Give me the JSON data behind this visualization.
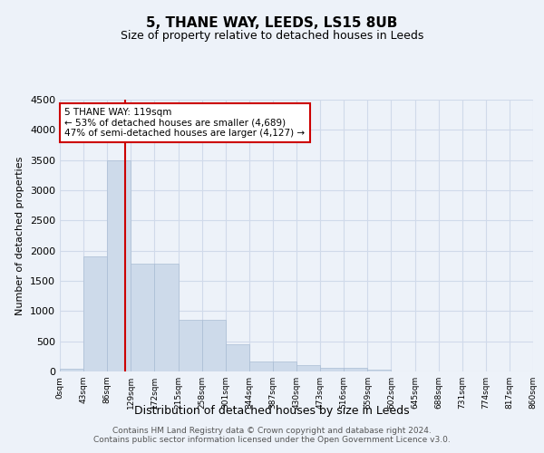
{
  "title": "5, THANE WAY, LEEDS, LS15 8UB",
  "subtitle": "Size of property relative to detached houses in Leeds",
  "xlabel": "Distribution of detached houses by size in Leeds",
  "ylabel": "Number of detached properties",
  "bar_heights": [
    50,
    1900,
    3500,
    1780,
    1780,
    850,
    850,
    450,
    160,
    160,
    100,
    60,
    55,
    30,
    0,
    0,
    0,
    0,
    0,
    0
  ],
  "bin_labels": [
    "0sqm",
    "43sqm",
    "86sqm",
    "129sqm",
    "172sqm",
    "215sqm",
    "258sqm",
    "301sqm",
    "344sqm",
    "387sqm",
    "430sqm",
    "473sqm",
    "516sqm",
    "559sqm",
    "602sqm",
    "645sqm",
    "688sqm",
    "731sqm",
    "774sqm",
    "817sqm",
    "860sqm"
  ],
  "bar_color": "#cddaea",
  "bar_edge_color": "#aabdd4",
  "vline_x": 2.75,
  "vline_color": "#cc0000",
  "annotation_text": "5 THANE WAY: 119sqm\n← 53% of detached houses are smaller (4,689)\n47% of semi-detached houses are larger (4,127) →",
  "annotation_box_color": "#ffffff",
  "annotation_box_edge": "#cc0000",
  "grid_color": "#d0daea",
  "background_color": "#edf2f9",
  "footer_text": "Contains HM Land Registry data © Crown copyright and database right 2024.\nContains public sector information licensed under the Open Government Licence v3.0.",
  "ylim": [
    0,
    4500
  ],
  "yticks": [
    0,
    500,
    1000,
    1500,
    2000,
    2500,
    3000,
    3500,
    4000,
    4500
  ]
}
